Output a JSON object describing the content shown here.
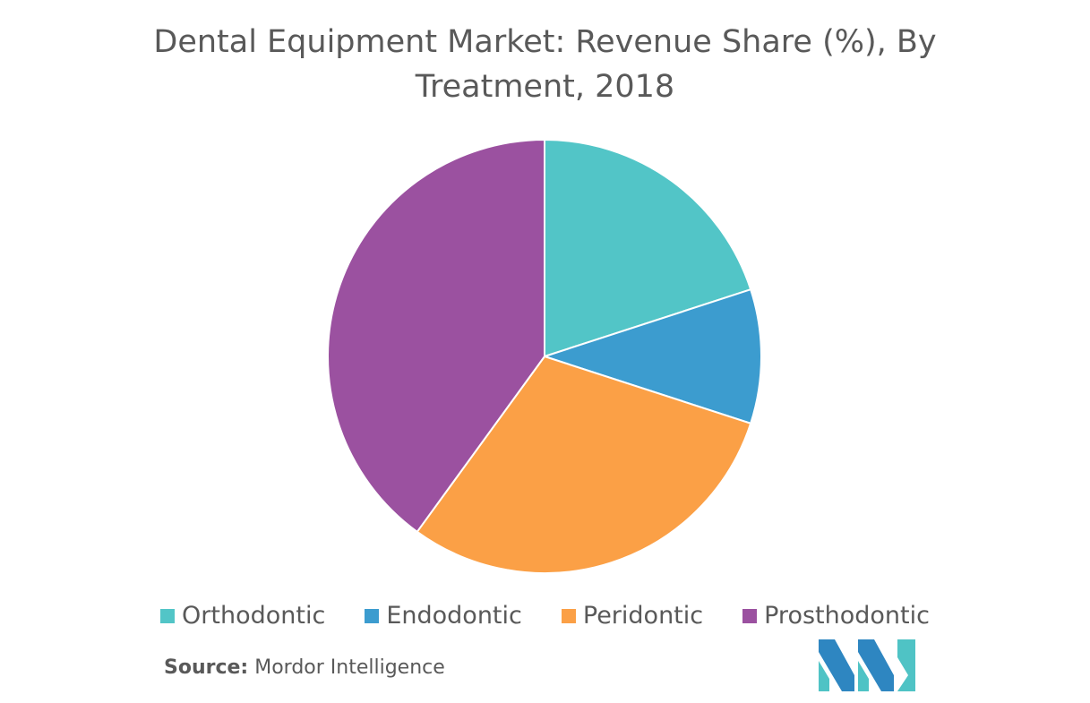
{
  "chart_data": {
    "type": "pie",
    "title": "Dental Equipment Market: Revenue Share (%), By Treatment, 2018",
    "categories": [
      "Orthodontic",
      "Endodontic",
      "Peridontic",
      "Prosthodontic"
    ],
    "values": [
      20,
      10,
      30,
      40
    ],
    "colors": [
      "#52C5C7",
      "#3C9CCF",
      "#FBA046",
      "#9B51A0"
    ],
    "legend": "bottom"
  },
  "source": {
    "prefix": "Source:",
    "text": " Mordor Intelligence"
  },
  "logo": {
    "icon": "mordor-intelligence-logo",
    "colors": [
      "#2E86C1",
      "#4FC3C5"
    ]
  }
}
